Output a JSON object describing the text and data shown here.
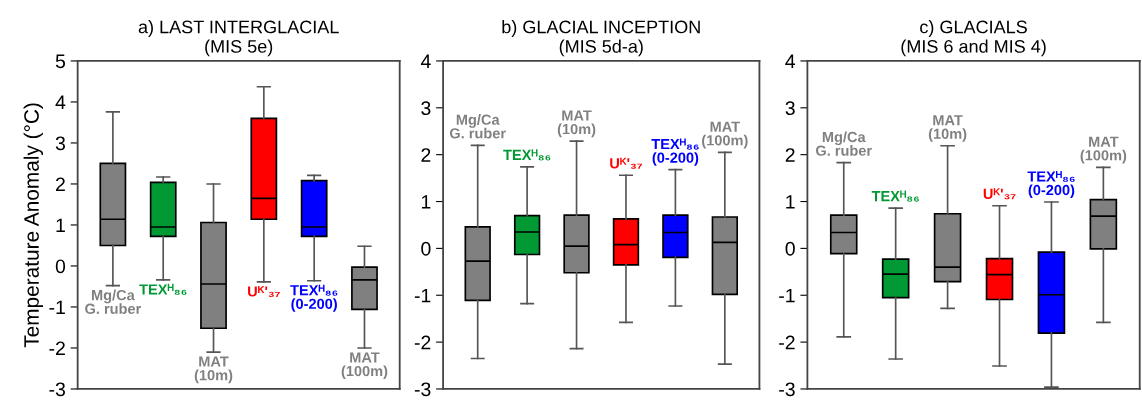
{
  "chart_data": [
    {
      "type": "box",
      "title": "a) LAST INTERGLACIAL\n(MIS 5e)",
      "ylabel": "Temperature Anomaly (°C)",
      "categories": [
        "Mg/Ca\nG. ruber",
        "TEXᴴ₈₆",
        "MAT\n(10m)",
        "Uᴷ'₃₇",
        "TEXᴴ₈₆\n(0-200)",
        "MAT\n(100m)"
      ],
      "colors": [
        "#808080",
        "#009933",
        "#808080",
        "#ff0000",
        "#0000ff",
        "#808080"
      ],
      "boxes": [
        {
          "low": -0.48,
          "q1": 0.5,
          "median": 1.14,
          "q3": 2.5,
          "high": 3.76
        },
        {
          "low": -0.34,
          "q1": 0.72,
          "median": 0.95,
          "q3": 2.04,
          "high": 2.17
        },
        {
          "low": -2.1,
          "q1": -1.52,
          "median": -0.44,
          "q3": 1.06,
          "high": 2.0
        },
        {
          "low": -0.39,
          "q1": 1.14,
          "median": 1.65,
          "q3": 3.6,
          "high": 4.37
        },
        {
          "low": -0.36,
          "q1": 0.72,
          "median": 0.95,
          "q3": 2.08,
          "high": 2.21
        },
        {
          "low": -2.0,
          "q1": -1.06,
          "median": -0.34,
          "q3": -0.03,
          "high": 0.48
        }
      ],
      "ylim": [
        -3,
        5
      ],
      "yticks": [
        -3,
        -2,
        -1,
        0,
        1,
        2,
        3,
        4,
        5
      ],
      "tick_labels": "y",
      "grid": false
    },
    {
      "type": "box",
      "title": "b) GLACIAL INCEPTION\n(MIS 5d-a)",
      "categories": [
        "Mg/Ca\nG. ruber",
        "TEXᴴ₈₆",
        "MAT\n(10m)",
        "Uᴷ'₃₇",
        "TEXᴴ₈₆\n(0-200)",
        "MAT\n(100m)"
      ],
      "colors": [
        "#808080",
        "#009933",
        "#808080",
        "#ff0000",
        "#0000ff",
        "#808080"
      ],
      "boxes": [
        {
          "low": -2.35,
          "q1": -1.11,
          "median": -0.27,
          "q3": 0.46,
          "high": 2.2
        },
        {
          "low": -1.18,
          "q1": -0.13,
          "median": 0.35,
          "q3": 0.7,
          "high": 1.74
        },
        {
          "low": -2.14,
          "q1": -0.52,
          "median": 0.05,
          "q3": 0.71,
          "high": 2.29
        },
        {
          "low": -1.58,
          "q1": -0.35,
          "median": 0.08,
          "q3": 0.63,
          "high": 1.56
        },
        {
          "low": -1.23,
          "q1": -0.19,
          "median": 0.34,
          "q3": 0.71,
          "high": 1.68
        },
        {
          "low": -2.47,
          "q1": -0.98,
          "median": 0.13,
          "q3": 0.67,
          "high": 2.05
        }
      ],
      "ylim": [
        -3,
        4
      ],
      "yticks": [
        -3,
        -2,
        -1,
        0,
        1,
        2,
        3,
        4
      ],
      "tick_labels": "y",
      "grid": false
    },
    {
      "type": "box",
      "title": "c) GLACIALS\n(MIS 6 and MIS 4)",
      "categories": [
        "Mg/Ca\nG. ruber",
        "TEXᴴ₈₆",
        "MAT\n(10m)",
        "Uᴷ'₃₇",
        "TEXᴴ₈₆\n(0-200)",
        "MAT\n(100m)"
      ],
      "colors": [
        "#808080",
        "#009933",
        "#808080",
        "#ff0000",
        "#0000ff",
        "#808080"
      ],
      "boxes": [
        {
          "low": -1.89,
          "q1": -0.11,
          "median": 0.34,
          "q3": 0.71,
          "high": 1.83
        },
        {
          "low": -2.36,
          "q1": -1.05,
          "median": -0.55,
          "q3": -0.23,
          "high": 0.86
        },
        {
          "low": -1.28,
          "q1": -0.71,
          "median": -0.4,
          "q3": 0.74,
          "high": 2.19
        },
        {
          "low": -2.51,
          "q1": -1.09,
          "median": -0.56,
          "q3": -0.22,
          "high": 0.91
        },
        {
          "low": -2.96,
          "q1": -1.81,
          "median": -0.99,
          "q3": -0.08,
          "high": 0.99
        },
        {
          "low": -1.58,
          "q1": -0.01,
          "median": 0.69,
          "q3": 1.04,
          "high": 1.73
        }
      ],
      "ylim": [
        -3,
        4
      ],
      "yticks": [
        -3,
        -2,
        -1,
        0,
        1,
        2,
        3,
        4
      ],
      "tick_labels": "y",
      "grid": false
    }
  ]
}
